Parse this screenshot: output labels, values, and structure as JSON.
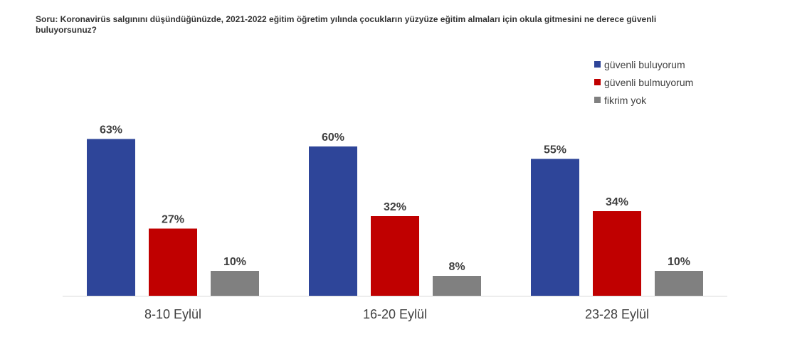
{
  "question": "Soru: Koronavirüs salgınını düşündüğünüzde, 2021-2022 eğitim öğretim yılında çocukların yüzyüze eğitim almaları için okula gitmesini ne derece güvenli buluyorsunuz?",
  "chart_data": {
    "type": "bar",
    "title": "Soru: Koronavirüs salgınını düşündüğünüzde, 2021-2022 eğitim öğretim yılında çocukların yüzyüze eğitim almaları için okula gitmesini ne derece güvenli buluyorsunuz?",
    "categories": [
      "8-10 Eylül",
      "16-20 Eylül",
      "23-28 Eylül"
    ],
    "series": [
      {
        "name": "güvenli buluyorum",
        "color": "#2E4599",
        "values": [
          63,
          60,
          55
        ]
      },
      {
        "name": "güvenli bulmuyorum",
        "color": "#C00000",
        "values": [
          27,
          32,
          34
        ]
      },
      {
        "name": "fikrim yok",
        "color": "#808080",
        "values": [
          10,
          8,
          10
        ]
      }
    ],
    "value_labels": [
      [
        "63%",
        "60%",
        "55%"
      ],
      [
        "27%",
        "32%",
        "34%"
      ],
      [
        "10%",
        "8%",
        "10%"
      ]
    ],
    "unit": "%",
    "ylim": [
      0,
      100
    ],
    "grid": false,
    "legend_position": "top-right",
    "xlabel": "",
    "ylabel": ""
  }
}
